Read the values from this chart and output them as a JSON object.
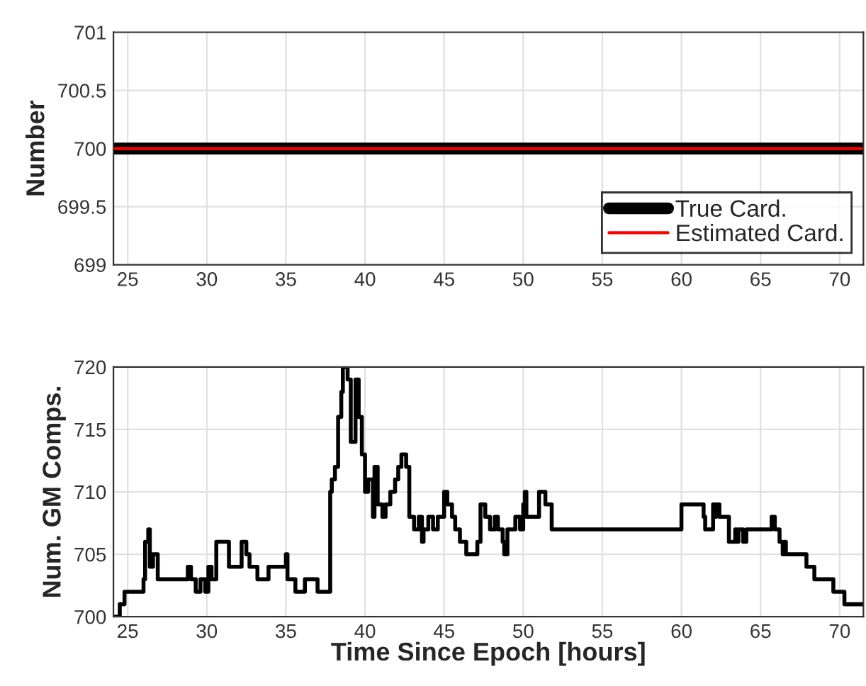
{
  "chart_data": [
    {
      "type": "line",
      "ylabel": "Number",
      "xlim": [
        24.1,
        71.5
      ],
      "ylim": [
        699,
        701
      ],
      "xticks": [
        25,
        30,
        35,
        40,
        45,
        50,
        55,
        60,
        65,
        70
      ],
      "yticks": [
        699,
        699.5,
        700,
        700.5,
        701
      ],
      "grid": true,
      "legend": "bottom right",
      "series": [
        {
          "name": "True Card.",
          "color": "#000000",
          "x": [
            24.1,
            71.5
          ],
          "values": [
            700,
            700
          ]
        },
        {
          "name": "Estimated Card.",
          "color": "#ff0000",
          "x": [
            24.1,
            71.5
          ],
          "values": [
            700,
            700
          ]
        }
      ]
    },
    {
      "type": "step",
      "ylabel": "Num. GM Comps.",
      "xlabel": "Time Since Epoch [hours]",
      "xlim": [
        24.1,
        71.5
      ],
      "ylim": [
        700,
        720
      ],
      "xticks": [
        25,
        30,
        35,
        40,
        45,
        50,
        55,
        60,
        65,
        70
      ],
      "yticks": [
        700,
        705,
        710,
        715,
        720
      ],
      "grid": true,
      "series": [
        {
          "color": "#000000",
          "x": [
            24.1,
            24.5,
            24.8,
            26.0,
            26.1,
            26.3,
            26.4,
            26.6,
            26.9,
            28.8,
            29.0,
            29.3,
            29.6,
            29.9,
            30.1,
            30.3,
            30.6,
            31.4,
            32.2,
            32.5,
            32.7,
            33.2,
            33.9,
            35.0,
            35.1,
            35.6,
            36.2,
            37.0,
            37.8,
            37.9,
            38.1,
            38.3,
            38.5,
            38.6,
            38.9,
            39.1,
            39.4,
            39.6,
            39.8,
            40.0,
            40.2,
            40.5,
            40.6,
            40.8,
            41.1,
            41.3,
            41.6,
            41.9,
            42.1,
            42.3,
            42.6,
            42.8,
            43.1,
            43.4,
            43.6,
            43.7,
            44.0,
            44.3,
            44.6,
            45.0,
            45.2,
            45.5,
            45.7,
            46.0,
            46.4,
            47.1,
            47.3,
            47.6,
            47.9,
            48.2,
            48.4,
            48.7,
            48.8,
            49.0,
            49.5,
            49.8,
            50.0,
            50.1,
            50.2,
            51.0,
            51.4,
            51.8,
            60.0,
            61.4,
            61.5,
            62.0,
            62.1,
            62.2,
            62.4,
            63.0,
            63.4,
            63.5,
            63.6,
            63.9,
            64.1,
            65.7,
            65.9,
            66.2,
            66.4,
            66.5,
            66.6,
            67.9,
            68.4,
            69.6,
            70.3,
            71.5
          ],
          "values": [
            700,
            701,
            702,
            703,
            706,
            707,
            704,
            705,
            703,
            704,
            703,
            702,
            703,
            702,
            704,
            703,
            706,
            704,
            706,
            705,
            704,
            703,
            704,
            705,
            703,
            702,
            703,
            702,
            710,
            711,
            712,
            716,
            718,
            720,
            719,
            714,
            719,
            716,
            713,
            710,
            711,
            708,
            712,
            709,
            708,
            709,
            710,
            711,
            712,
            713,
            712,
            708,
            707,
            708,
            706,
            707,
            708,
            707,
            708,
            710,
            709,
            708,
            707,
            706,
            705,
            706,
            709,
            708,
            707,
            708,
            707,
            706,
            705,
            707,
            708,
            707,
            709,
            710,
            708,
            710,
            709,
            707,
            709,
            708,
            707,
            709,
            708,
            709,
            708,
            706,
            707,
            706,
            707,
            706,
            707,
            708,
            707,
            706,
            705,
            706,
            705,
            704,
            703,
            702,
            701,
            701
          ]
        }
      ]
    }
  ]
}
